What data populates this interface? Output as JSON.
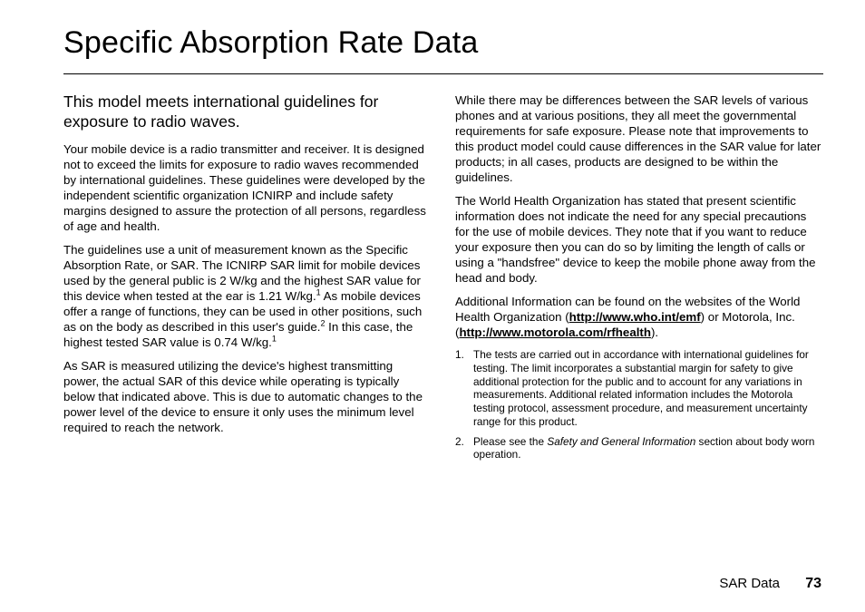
{
  "title": "Specific Absorption Rate Data",
  "subhead": "This model meets international guidelines for exposure to radio waves.",
  "left": {
    "p1": "Your mobile device is a radio transmitter and receiver. It is designed not to exceed the limits for exposure to radio waves recommended by international guidelines. These guidelines were developed by the independent scientific organization ICNIRP and include safety margins designed to assure the protection of all persons, regardless of age and health.",
    "p2a": "The guidelines use a unit of measurement known as the Specific Absorption Rate, or SAR. The ICNIRP SAR limit for mobile devices used by the general public is 2 W/kg and the highest SAR value for this device when tested at the ear is 1.21 W/kg.",
    "p2b": " As mobile devices offer a range of functions, they can be used in other positions, such as on the body as described in this user's guide.",
    "p2c": " In this case, the highest tested SAR value is 0.74 W/kg.",
    "p3": "As SAR is measured utilizing the device's highest transmitting power, the actual SAR of this device while operating is typically below that indicated above. This is due to automatic changes to the power level of the device to ensure it only uses the minimum level required to reach the network."
  },
  "right": {
    "p1": "While there may be differences between the SAR levels of various phones and at various positions, they all meet the governmental requirements for safe exposure. Please note that improvements to this product model could cause differences in the SAR value for later products; in all cases, products are designed to be within the guidelines.",
    "p2": "The World Health Organization has stated that present scientific information does not indicate the need for any special precautions for the use of mobile devices. They note that if you want to reduce your exposure then you can do so by limiting the length of calls or using a \"handsfree\" device to keep the mobile phone away from the head and body.",
    "p3a": "Additional Information can be found on the websites of the World Health Organization (",
    "link1": "http://www.who.int/emf",
    "p3b": ") or Motorola, Inc. (",
    "link2": "http://www.motorola.com/rfhealth",
    "p3c": ")."
  },
  "footnotes": {
    "n1": "1.",
    "f1": "The tests are carried out in accordance with international guidelines for testing. The limit incorporates a substantial margin for safety to give additional protection for the public and to account for any variations in measurements. Additional related information includes the Motorola testing protocol, assessment procedure, and measurement uncertainty range for this product.",
    "n2": "2.",
    "f2a": "Please see the ",
    "f2i": "Safety and General Information",
    "f2b": " section about body worn operation."
  },
  "footer": {
    "label": "SAR Data",
    "page": "73"
  }
}
